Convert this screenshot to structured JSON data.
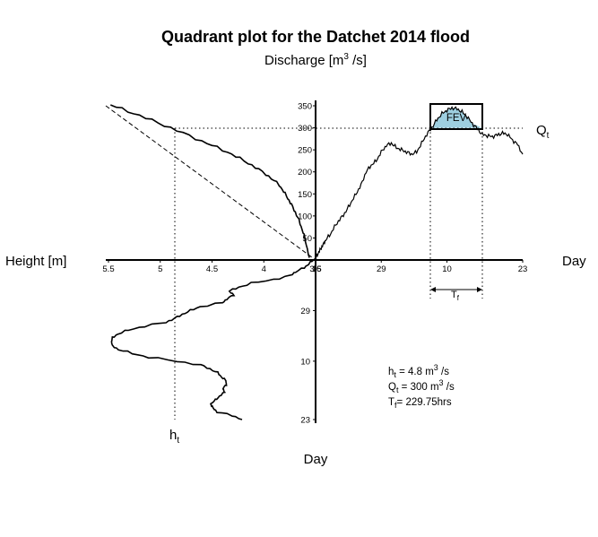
{
  "chart_data": {
    "type": "quadrant-line",
    "title": "Quadrant plot for the Datchet 2014 flood",
    "subtitle": {
      "main": "Discharge [m",
      "sup": "3",
      "end": " /s]"
    },
    "axes": {
      "left": "Height [m]",
      "right": "Day",
      "bottom": "Day",
      "q_label": {
        "main": "Q",
        "sub": "t"
      },
      "h_label": {
        "main": "h",
        "sub": "t"
      }
    },
    "discharge_ticks": [
      "350",
      "300",
      "250",
      "200",
      "150",
      "100",
      "50"
    ],
    "discharge_range": [
      0,
      350
    ],
    "height_ticks": [
      "5.5",
      "5",
      "4.5",
      "4",
      "3.5"
    ],
    "height_range": [
      3.5,
      5.5
    ],
    "day_ticks_right": [
      "16",
      "29",
      "10",
      "23"
    ],
    "day_ticks_down": [
      "29",
      "10",
      "23"
    ],
    "day_index_range": [
      0,
      41
    ],
    "thresholds": {
      "h_t": 4.8,
      "Q_t": 300
    },
    "fev_label": "FEV",
    "tf_label": {
      "main": "T",
      "sub": "f"
    },
    "annotations": [
      {
        "main": "h",
        "sub": "t",
        "rest": " = 4.8 m",
        "sup": "3",
        "end": " /s"
      },
      {
        "main": "Q",
        "sub": "t",
        "rest": " = 300 m",
        "sup": "3",
        "end": " /s"
      },
      {
        "main": "T",
        "sub": "f",
        "rest": "= 229.75hrs",
        "sup": "",
        "end": ""
      }
    ],
    "hydrograph": {
      "name": "discharge",
      "x_day_index": [
        0,
        0.5,
        1,
        1.5,
        2,
        3,
        4,
        5,
        6,
        7,
        8,
        9,
        10,
        11,
        12,
        13,
        14,
        15,
        16,
        17,
        18,
        19,
        20,
        21,
        22,
        23,
        24,
        25,
        26,
        27,
        28,
        29,
        30,
        31,
        32,
        33,
        34,
        35,
        36,
        37,
        38,
        39,
        40,
        41
      ],
      "y_discharge": [
        5,
        15,
        25,
        35,
        45,
        60,
        80,
        95,
        110,
        130,
        150,
        170,
        200,
        215,
        225,
        245,
        260,
        265,
        255,
        250,
        245,
        240,
        245,
        265,
        285,
        300,
        318,
        332,
        340,
        345,
        343,
        336,
        325,
        310,
        298,
        285,
        282,
        280,
        284,
        288,
        285,
        272,
        262,
        240
      ]
    },
    "rating_curve": {
      "name": "stage-discharge",
      "height_m": [
        5.48,
        5.2,
        4.9,
        4.6,
        4.35,
        4.15,
        3.98,
        3.85,
        3.78,
        3.72,
        3.66,
        3.61,
        3.56
      ],
      "discharge": [
        352,
        328,
        300,
        270,
        245,
        220,
        195,
        170,
        145,
        120,
        90,
        55,
        5
      ]
    },
    "stage_series": {
      "name": "height over time",
      "day_index": [
        0,
        1,
        2,
        3,
        4,
        5,
        6,
        7,
        8,
        9,
        10,
        11,
        12,
        13,
        14,
        15,
        16,
        17,
        18,
        19,
        20,
        21,
        22,
        23,
        24,
        25,
        26,
        27,
        28,
        29,
        30,
        31,
        32,
        33,
        34,
        35,
        36,
        37,
        38,
        39,
        40,
        41
      ],
      "height_m": [
        3.52,
        3.56,
        3.62,
        3.68,
        3.75,
        3.9,
        4.12,
        4.25,
        4.32,
        4.3,
        4.35,
        4.4,
        4.62,
        4.7,
        4.8,
        4.85,
        4.95,
        5.15,
        5.3,
        5.42,
        5.45,
        5.48,
        5.46,
        5.4,
        5.28,
        5.1,
        4.85,
        4.6,
        4.52,
        4.45,
        4.4,
        4.38,
        4.35,
        4.4,
        4.38,
        4.42,
        4.48,
        4.5,
        4.5,
        4.45,
        4.3,
        4.22
      ]
    }
  }
}
